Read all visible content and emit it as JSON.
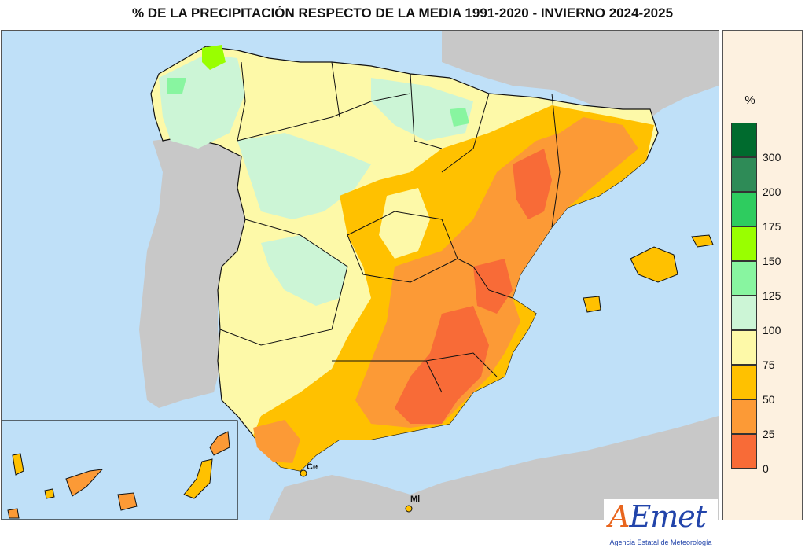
{
  "title": "% DE LA PRECIPITACIÓN RESPECTO DE LA MEDIA 1991-2020 - INVIERNO 2024-2025",
  "legend": {
    "unit": "%",
    "classes": [
      {
        "upper": "300",
        "color": "#006b2e"
      },
      {
        "upper": "200",
        "color": "#2e8b57"
      },
      {
        "upper": "175",
        "color": "#2ecc5f"
      },
      {
        "upper": "150",
        "color": "#99ff00"
      },
      {
        "upper": "125",
        "color": "#88f5a0"
      },
      {
        "upper": "100",
        "color": "#ccf5d6"
      },
      {
        "upper": "75",
        "color": "#fdf9a8"
      },
      {
        "upper": "50",
        "color": "#ffc100"
      },
      {
        "upper": "25",
        "color": "#fc9a36"
      },
      {
        "upper": "0",
        "color": "#f86b37"
      }
    ]
  },
  "cities": [
    {
      "label": "Ce"
    },
    {
      "label": "Ml"
    }
  ],
  "logo": {
    "brand_a": "A",
    "brand_e": "E",
    "brand_rest": "met",
    "subtitle": "Agencia Estatal de Meteorología"
  },
  "colors": {
    "sea": "#bfe0f8",
    "neighbor_land": "#c8c8c8",
    "border": "#111111"
  }
}
